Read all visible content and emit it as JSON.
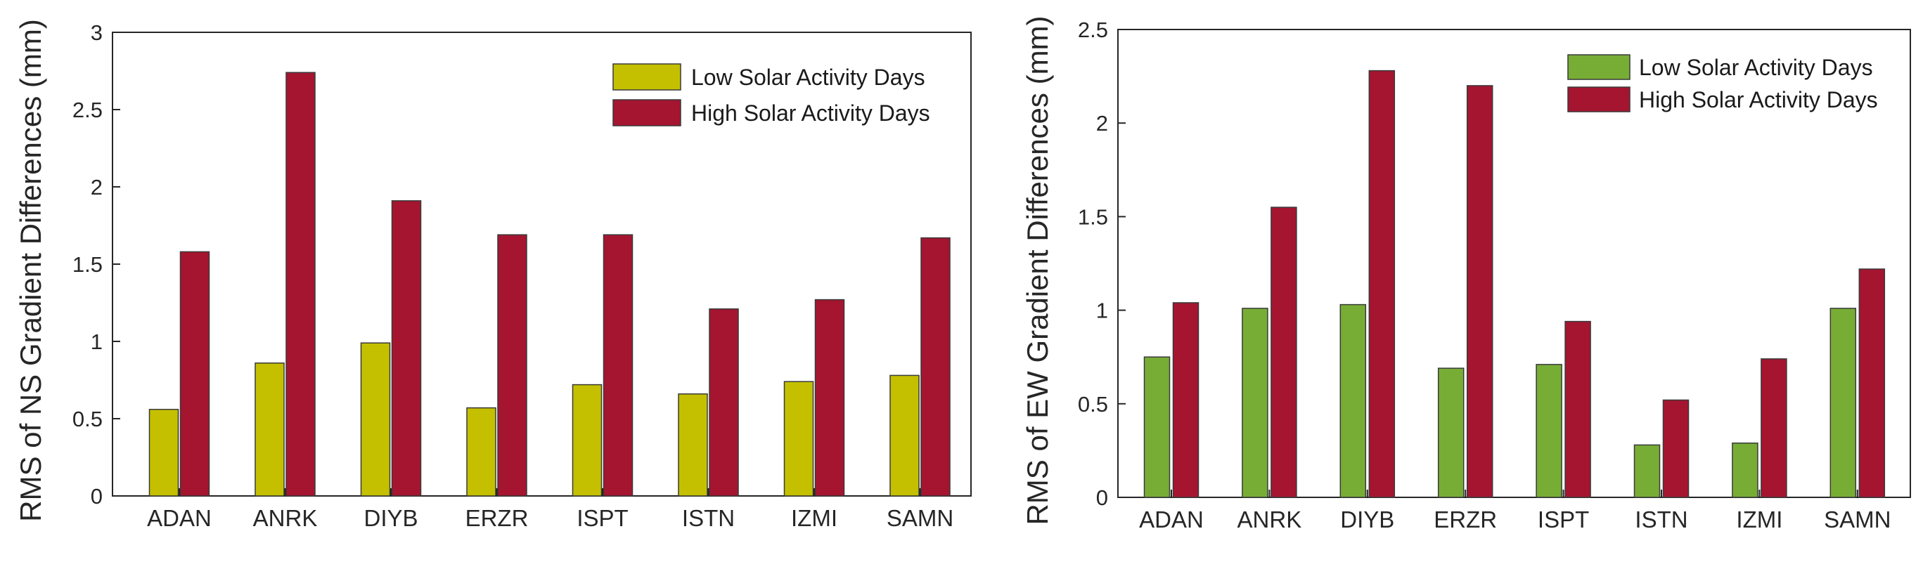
{
  "chart_data": [
    {
      "type": "bar",
      "title": "",
      "xlabel": "",
      "ylabel": "RMS of NS Gradient Differences (mm)",
      "ylim": [
        0,
        3
      ],
      "yticks": [
        0,
        0.5,
        1,
        1.5,
        2,
        2.5,
        3
      ],
      "ytick_labels": [
        "0",
        "0.5",
        "1",
        "1.5",
        "2",
        "2.5",
        "3"
      ],
      "grid": false,
      "legend_position": "top-right",
      "categories": [
        "ADAN",
        "ANRK",
        "DIYB",
        "ERZR",
        "ISPT",
        "ISTN",
        "IZMI",
        "SAMN"
      ],
      "series": [
        {
          "name": "Low Solar Activity Days",
          "color": "#c4c000",
          "values": [
            0.56,
            0.86,
            0.99,
            0.57,
            0.72,
            0.66,
            0.74,
            0.78
          ]
        },
        {
          "name": "High Solar Activity Days",
          "color": "#a51530",
          "values": [
            1.58,
            2.74,
            1.91,
            1.69,
            1.69,
            1.21,
            1.27,
            1.67
          ]
        }
      ]
    },
    {
      "type": "bar",
      "title": "",
      "xlabel": "",
      "ylabel": "RMS of EW Gradient Differences (mm)",
      "ylim": [
        0,
        2.5
      ],
      "yticks": [
        0,
        0.5,
        1,
        1.5,
        2,
        2.5
      ],
      "ytick_labels": [
        "0",
        "0.5",
        "1",
        "1.5",
        "2",
        "2.5"
      ],
      "grid": false,
      "legend_position": "top-right",
      "categories": [
        "ADAN",
        "ANRK",
        "DIYB",
        "ERZR",
        "ISPT",
        "ISTN",
        "IZMI",
        "SAMN"
      ],
      "series": [
        {
          "name": "Low Solar Activity Days",
          "color": "#77ad35",
          "values": [
            0.75,
            1.01,
            1.03,
            0.69,
            0.71,
            0.28,
            0.29,
            1.01
          ]
        },
        {
          "name": "High Solar Activity Days",
          "color": "#a51530",
          "values": [
            1.04,
            1.55,
            2.28,
            2.2,
            0.94,
            0.52,
            0.74,
            1.22
          ]
        }
      ]
    }
  ]
}
